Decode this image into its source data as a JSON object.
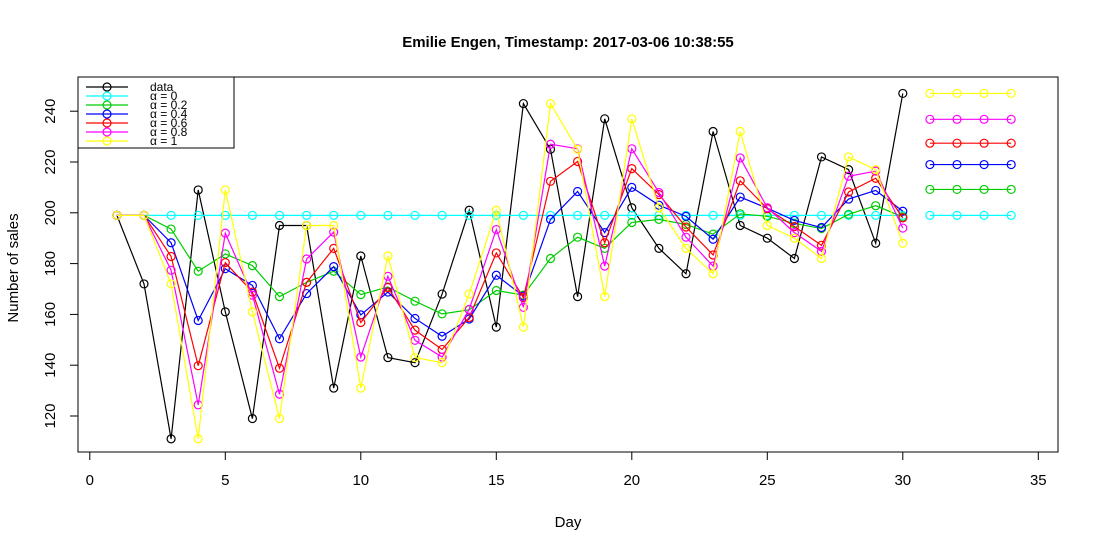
{
  "chart_data": {
    "type": "line",
    "title": "Emilie Engen, Timestamp: 2017-03-06 10:38:55",
    "xlabel": "Day",
    "ylabel": "Number of sales",
    "xlim": [
      0,
      35
    ],
    "ylim": [
      105,
      250
    ],
    "xticks": [
      0,
      5,
      10,
      15,
      20,
      25,
      30,
      35
    ],
    "yticks": [
      120,
      140,
      160,
      180,
      200,
      220,
      240
    ],
    "grid": false,
    "legend_position": "top-left",
    "x": [
      1,
      2,
      3,
      4,
      5,
      6,
      7,
      8,
      9,
      10,
      11,
      12,
      13,
      14,
      15,
      16,
      17,
      18,
      19,
      20,
      21,
      22,
      23,
      24,
      25,
      26,
      27,
      28,
      29,
      30
    ],
    "series": [
      {
        "name": "data",
        "color": "#000000",
        "values": [
          199,
          172,
          111,
          209,
          161,
          119,
          195,
          195,
          131,
          183,
          143,
          141,
          168,
          201,
          155,
          243,
          225,
          167,
          237,
          202,
          186,
          176,
          232,
          195,
          190,
          182,
          222,
          217,
          188,
          247
        ]
      },
      {
        "name": "α = 0",
        "color": "#00FFFF",
        "values": [
          199,
          199,
          199,
          199,
          199,
          199,
          199,
          199,
          199,
          199,
          199,
          199,
          199,
          199,
          199,
          199,
          199,
          199,
          199,
          199,
          199,
          199,
          199,
          199,
          199,
          199,
          199,
          199,
          199,
          199
        ]
      },
      {
        "name": "α = 0.2",
        "color": "#00CD00",
        "values": [
          199,
          199,
          193.6,
          177,
          183.8,
          179.2,
          167,
          172.6,
          177,
          167.8,
          170.8,
          165.2,
          160.2,
          161.8,
          169.4,
          167.6,
          182,
          190.4,
          186,
          196.2,
          197.4,
          195.4,
          191.6,
          199.6,
          198.6,
          195.8,
          193.8,
          199.4,
          202.8,
          198.4
        ]
      },
      {
        "name": "α = 0.4",
        "color": "#0000FF",
        "values": [
          199,
          199,
          188.2,
          157.6,
          178,
          171.4,
          150.4,
          168.2,
          178.8,
          159.8,
          168.8,
          158.4,
          151.4,
          158.2,
          175.4,
          167.2,
          197.4,
          208.4,
          192.2,
          210,
          203,
          198.6,
          189.6,
          206.2,
          201.8,
          197,
          194.2,
          205.4,
          208.8,
          200.6
        ]
      },
      {
        "name": "α = 0.6",
        "color": "#FF0000",
        "values": [
          199,
          199,
          182.8,
          139.8,
          180.4,
          168.8,
          138.8,
          172.6,
          186,
          156.8,
          170.6,
          153.8,
          146.2,
          158.8,
          184.2,
          166.6,
          212.4,
          220.2,
          188.2,
          217.4,
          207.2,
          194.4,
          183.4,
          212.6,
          201.6,
          194.6,
          187.2,
          208.2,
          213.6,
          198
        ]
      },
      {
        "name": "α = 0.8",
        "color": "#FF00FF",
        "values": [
          199,
          199,
          177.4,
          124.4,
          192,
          167.6,
          128.6,
          181.8,
          192.4,
          143.2,
          175,
          149.8,
          143.2,
          162,
          193.4,
          162.8,
          227,
          225.2,
          179,
          225.2,
          208,
          190.4,
          179,
          221.6,
          202,
          192.2,
          184.8,
          214.4,
          216.4,
          194
        ]
      },
      {
        "name": "α = 1",
        "color": "#FFFF00",
        "values": [
          199,
          199,
          172,
          111,
          209,
          161,
          119,
          195,
          195,
          131,
          183,
          143,
          141,
          168,
          201,
          155,
          243,
          225,
          167,
          237,
          202,
          186,
          176,
          232,
          195,
          190,
          182,
          222,
          217,
          188
        ]
      }
    ],
    "forecast_x": [
      31,
      32,
      33,
      34
    ],
    "forecasts": [
      {
        "color": "#FFFF00",
        "value": 247
      },
      {
        "color": "#FF00FF",
        "value": 236.8
      },
      {
        "color": "#FF0000",
        "value": 227.4
      },
      {
        "color": "#0000FF",
        "value": 219
      },
      {
        "color": "#00CD00",
        "value": 209.2
      },
      {
        "color": "#00FFFF",
        "value": 199
      }
    ]
  }
}
